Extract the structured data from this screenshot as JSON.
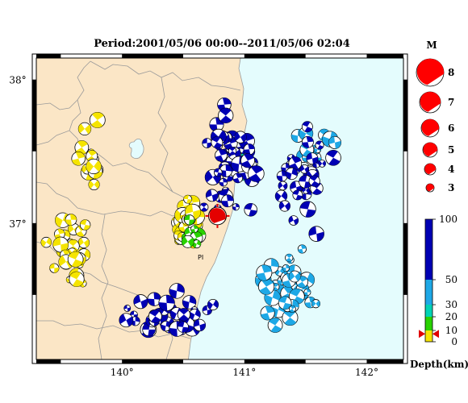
{
  "title": "Period:2001/05/06 00:00--2011/05/06 02:04",
  "map": {
    "lon_range": [
      139.3,
      142.3
    ],
    "lat_range": [
      36.05,
      38.15
    ],
    "lon_ticks": [
      {
        "value": 140,
        "label": "140°"
      },
      {
        "value": 141,
        "label": "141°"
      },
      {
        "value": 142,
        "label": "142°"
      }
    ],
    "lat_ticks": [
      {
        "value": 38,
        "label": "38°"
      },
      {
        "value": 37,
        "label": "37°"
      }
    ],
    "colors": {
      "land": "#fbe6c6",
      "sea": "#e4fcfd",
      "boundary": "#9a9a9a",
      "frame": "#000000"
    },
    "station_label": "PI",
    "highlight_event": {
      "lon": 140.78,
      "lat": 37.05,
      "mag": 6,
      "color": "#e40000"
    }
  },
  "magnitude_legend": {
    "title": "M",
    "color": "#ff0000",
    "items": [
      {
        "label": "8",
        "mag": 8
      },
      {
        "label": "7",
        "mag": 7
      },
      {
        "label": "6",
        "mag": 6
      },
      {
        "label": "5",
        "mag": 5
      },
      {
        "label": "4",
        "mag": 4
      },
      {
        "label": "3",
        "mag": 3
      }
    ]
  },
  "depth_scale": {
    "title": "Depth(km)",
    "ticks": [
      {
        "value": 100,
        "label": "100"
      },
      {
        "value": 50,
        "label": "50"
      },
      {
        "value": 30,
        "label": "30"
      },
      {
        "value": 20,
        "label": "20"
      },
      {
        "value": 10,
        "label": "10"
      },
      {
        "value": 0,
        "label": "0"
      }
    ],
    "segments": [
      {
        "from": 0,
        "to": 10,
        "color": "#f5e400"
      },
      {
        "from": 10,
        "to": 20,
        "color": "#29d200"
      },
      {
        "from": 20,
        "to": 30,
        "color": "#00d3b6"
      },
      {
        "from": 30,
        "to": 50,
        "color": "#1ea8e6"
      },
      {
        "from": 50,
        "to": 100,
        "color": "#0000b4"
      }
    ],
    "marker_value": 7,
    "marker_color": "#e00000"
  },
  "chart_data": {
    "type": "scatter",
    "x_label": "",
    "y_label": "",
    "clusters": [
      {
        "name": "shallow-inland",
        "depth_km": 5,
        "color": "#f5e400",
        "center": [
          139.6,
          36.8
        ],
        "spread": [
          0.25,
          0.35
        ],
        "count": 32
      },
      {
        "name": "shallow-fault",
        "depth_km": 8,
        "color": "#f5e400",
        "center": [
          140.55,
          37.0
        ],
        "spread": [
          0.12,
          0.18
        ],
        "count": 38
      },
      {
        "name": "shallow-west",
        "depth_km": 5,
        "color": "#f5e400",
        "center": [
          139.75,
          37.45
        ],
        "spread": [
          0.15,
          0.35
        ],
        "count": 16
      },
      {
        "name": "mid-shallow",
        "depth_km": 15,
        "color": "#29d200",
        "center": [
          140.6,
          36.9
        ],
        "spread": [
          0.12,
          0.15
        ],
        "count": 10
      },
      {
        "name": "mid-depth",
        "depth_km": 25,
        "color": "#00d3b6",
        "center": [
          141.0,
          37.35
        ],
        "spread": [
          0.15,
          0.2
        ],
        "count": 6
      },
      {
        "name": "inter-plate",
        "depth_km": 42,
        "color": "#1ea8e6",
        "center": [
          141.35,
          36.55
        ],
        "spread": [
          0.25,
          0.3
        ],
        "count": 40
      },
      {
        "name": "inter-plate-north",
        "depth_km": 42,
        "color": "#1ea8e6",
        "center": [
          141.6,
          37.55
        ],
        "spread": [
          0.35,
          0.2
        ],
        "count": 12
      },
      {
        "name": "deep-coast",
        "depth_km": 75,
        "color": "#0000b4",
        "center": [
          140.9,
          37.45
        ],
        "spread": [
          0.35,
          0.55
        ],
        "count": 48
      },
      {
        "name": "deep-south",
        "depth_km": 75,
        "color": "#0000b4",
        "center": [
          140.4,
          36.35
        ],
        "spread": [
          0.45,
          0.2
        ],
        "count": 40
      },
      {
        "name": "deep-offshore",
        "depth_km": 80,
        "color": "#0000b4",
        "center": [
          141.5,
          37.3
        ],
        "spread": [
          0.4,
          0.5
        ],
        "count": 30
      }
    ]
  }
}
